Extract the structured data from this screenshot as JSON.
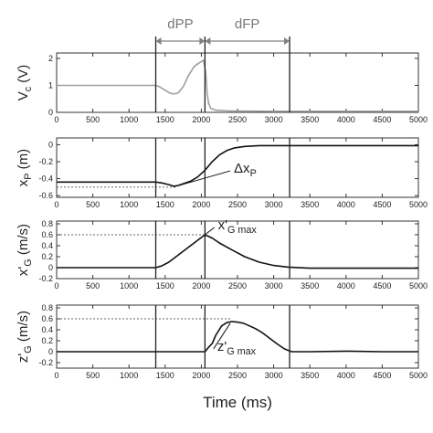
{
  "phases": {
    "labels": [
      "dPP",
      "dFP"
    ],
    "boundaries_ms": [
      1370,
      2050,
      3220
    ],
    "color": "#808080"
  },
  "xlabel": "Time (ms)",
  "chart_data": [
    {
      "type": "line",
      "ylabel": "V_c (V)",
      "ylabel_main": "V",
      "ylabel_sub": "c",
      "ylabel_unit": " (V)",
      "xlim": [
        0,
        5000
      ],
      "ylim": [
        0,
        2.2
      ],
      "yticks": [
        0,
        1,
        2
      ],
      "xticks": [
        0,
        500,
        1000,
        1500,
        2000,
        2500,
        3000,
        3500,
        4000,
        4500,
        5000
      ],
      "series": [
        {
          "color": "#a0a0a0",
          "x": [
            0,
            1370,
            1420,
            1500,
            1560,
            1620,
            1680,
            1750,
            1820,
            1900,
            1980,
            2030,
            2060,
            2080,
            2100,
            2130,
            2200,
            2400,
            3000,
            4000,
            5000
          ],
          "y": [
            1.0,
            1.0,
            0.95,
            0.82,
            0.72,
            0.68,
            0.72,
            0.95,
            1.35,
            1.7,
            1.85,
            1.93,
            1.5,
            0.7,
            0.35,
            0.15,
            0.08,
            0.05,
            0.04,
            0.04,
            0.04
          ]
        }
      ]
    },
    {
      "type": "line",
      "ylabel": "x_P (m)",
      "ylabel_main": "x",
      "ylabel_sub": "P",
      "ylabel_unit": " (m)",
      "xlim": [
        0,
        5000
      ],
      "ylim": [
        -0.62,
        0.08
      ],
      "yticks": [
        0,
        -0.2,
        -0.4,
        -0.6
      ],
      "xticks": [
        0,
        500,
        1000,
        1500,
        2000,
        2500,
        3000,
        3500,
        4000,
        4500,
        5000
      ],
      "ref_line_y": -0.5,
      "ref_line_x": [
        0,
        1650
      ],
      "annotation": {
        "main": "Δx",
        "sub": "P",
        "at": [
          1650,
          -0.49
        ],
        "text_at": [
          2450,
          -0.33
        ]
      },
      "series": [
        {
          "color": "#111111",
          "x": [
            0,
            1370,
            1450,
            1550,
            1620,
            1680,
            1750,
            1850,
            1950,
            2050,
            2150,
            2250,
            2350,
            2450,
            2600,
            2800,
            3100,
            3500,
            4000,
            4500,
            5000
          ],
          "y": [
            -0.44,
            -0.44,
            -0.45,
            -0.47,
            -0.49,
            -0.48,
            -0.46,
            -0.43,
            -0.38,
            -0.3,
            -0.2,
            -0.12,
            -0.07,
            -0.04,
            -0.02,
            -0.01,
            -0.01,
            -0.01,
            -0.01,
            -0.01,
            -0.01
          ]
        }
      ]
    },
    {
      "type": "line",
      "ylabel": "x'_G (m/s)",
      "ylabel_main": "x'",
      "ylabel_sub": "G",
      "ylabel_unit": " (m/s)",
      "xlim": [
        0,
        5000
      ],
      "ylim": [
        -0.2,
        0.85
      ],
      "yticks": [
        -0.2,
        0,
        0.2,
        0.4,
        0.6,
        0.8
      ],
      "xticks": [
        0,
        500,
        1000,
        1500,
        2000,
        2500,
        3000,
        3500,
        4000,
        4500,
        5000
      ],
      "ref_line_y": 0.6,
      "ref_line_x": [
        0,
        2050
      ],
      "annotation": {
        "main": "x'",
        "sub": "G max",
        "at": [
          2050,
          0.6
        ],
        "text_at": [
          2230,
          0.7
        ]
      },
      "series": [
        {
          "color": "#111111",
          "x": [
            0,
            1370,
            1450,
            1550,
            1650,
            1750,
            1850,
            1950,
            2050,
            2150,
            2250,
            2400,
            2600,
            2800,
            3000,
            3200,
            3500,
            4000,
            4500,
            5000
          ],
          "y": [
            0.0,
            0.0,
            0.03,
            0.1,
            0.2,
            0.3,
            0.4,
            0.5,
            0.6,
            0.54,
            0.45,
            0.34,
            0.2,
            0.1,
            0.04,
            0.01,
            -0.01,
            -0.01,
            -0.01,
            -0.01
          ]
        }
      ]
    },
    {
      "type": "line",
      "ylabel": "z'_G (m/s)",
      "ylabel_main": "z'",
      "ylabel_sub": "G",
      "ylabel_unit": " (m/s)",
      "xlim": [
        0,
        5000
      ],
      "ylim": [
        -0.3,
        0.85
      ],
      "yticks": [
        -0.2,
        0,
        0.2,
        0.4,
        0.6,
        0.8
      ],
      "xticks": [
        0,
        500,
        1000,
        1500,
        2000,
        2500,
        3000,
        3500,
        4000,
        4500,
        5000
      ],
      "xticklabels": [
        "0",
        "500",
        "1000",
        "1500",
        "2000",
        "2500",
        "3000",
        "3500",
        "4000",
        "4500",
        "5000"
      ],
      "ref_line_y": 0.6,
      "ref_line_x": [
        0,
        2400
      ],
      "annotation": {
        "main": "z'",
        "sub": "G max",
        "at": [
          2400,
          0.52
        ],
        "text_at": [
          2220,
          0.02
        ]
      },
      "series": [
        {
          "color": "#111111",
          "x": [
            0,
            1370,
            1800,
            2050,
            2100,
            2150,
            2200,
            2280,
            2350,
            2420,
            2500,
            2580,
            2650,
            2750,
            2850,
            2950,
            3050,
            3150,
            3250,
            3500,
            4000,
            4500,
            5000
          ],
          "y": [
            0.0,
            0.0,
            0.0,
            0.0,
            0.08,
            0.15,
            0.3,
            0.47,
            0.53,
            0.55,
            0.54,
            0.52,
            0.48,
            0.42,
            0.34,
            0.24,
            0.14,
            0.05,
            0.0,
            0.0,
            0.01,
            0.0,
            0.0
          ]
        }
      ]
    }
  ]
}
